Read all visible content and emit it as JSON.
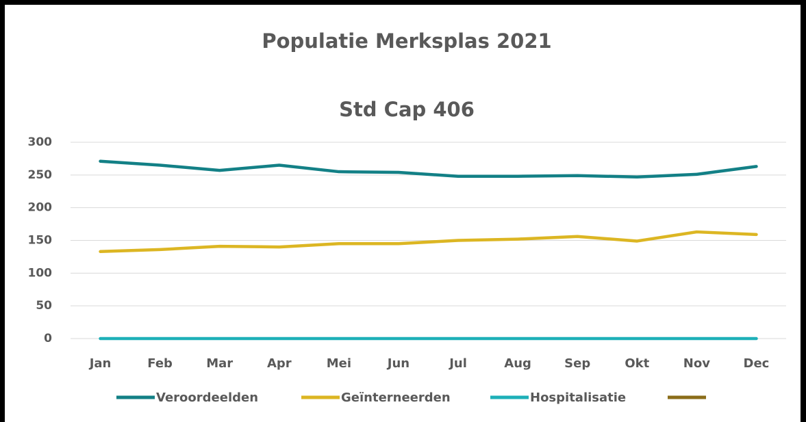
{
  "chart_data": {
    "type": "line",
    "title": "Populatie Merksplas 2021",
    "subtitle": "Std Cap 406",
    "categories": [
      "Jan",
      "Feb",
      "Mar",
      "Apr",
      "Mei",
      "Jun",
      "Jul",
      "Aug",
      "Sep",
      "Okt",
      "Nov",
      "Dec"
    ],
    "series": [
      {
        "name": "Veroordeelden",
        "color": "#138086",
        "values": [
          271,
          265,
          257,
          265,
          255,
          254,
          248,
          248,
          249,
          247,
          251,
          263
        ]
      },
      {
        "name": "Geïnterneerden",
        "color": "#dcb623",
        "values": [
          133,
          136,
          141,
          140,
          145,
          145,
          150,
          152,
          156,
          149,
          163,
          159
        ]
      },
      {
        "name": "Hospitalisatie",
        "color": "#1eb0b8",
        "values": [
          0,
          0,
          0,
          0,
          0,
          0,
          0,
          0,
          0,
          0,
          0,
          0
        ]
      },
      {
        "name": null,
        "color": "#8b6d1a",
        "values": [
          null,
          null,
          null,
          null,
          null,
          null,
          null,
          null,
          null,
          null,
          null,
          null
        ]
      }
    ],
    "ylim": [
      0,
      300
    ],
    "yticks": [
      0,
      50,
      100,
      150,
      200,
      250,
      300
    ],
    "grid": true,
    "legend": "bottom"
  }
}
